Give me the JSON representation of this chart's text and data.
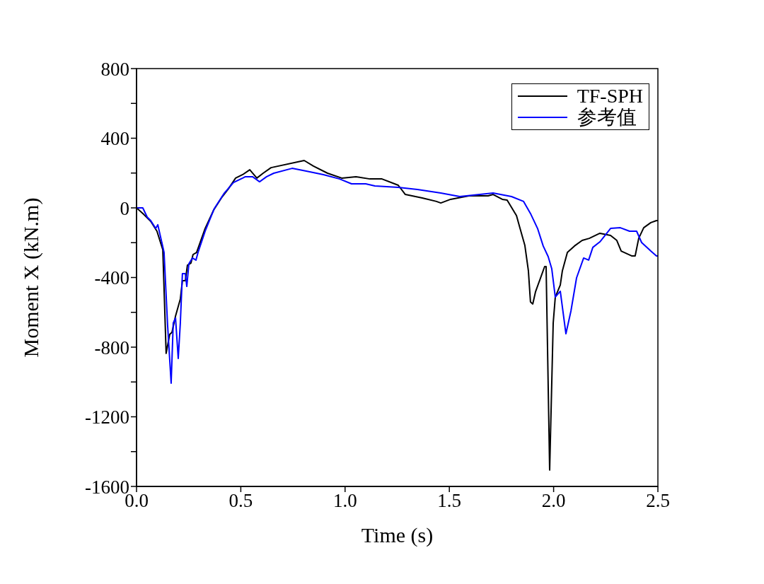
{
  "chart_data": {
    "type": "line",
    "xlabel": "Time (s)",
    "ylabel": "Moment X (kN.m)",
    "xlim": [
      0,
      2.5
    ],
    "xticks": [
      {
        "value": 0,
        "label": "0.0"
      },
      {
        "value": 0.5,
        "label": "0.5"
      },
      {
        "value": 1,
        "label": "1.0"
      },
      {
        "value": 1.5,
        "label": "1.5"
      },
      {
        "value": 2,
        "label": "2.0"
      },
      {
        "value": 2.5,
        "label": "2.5"
      }
    ],
    "ylim": [
      -1600,
      800
    ],
    "yticks": [
      -1600,
      {
        "value": -1400,
        "label": null
      },
      -1200,
      {
        "value": -1000,
        "label": null
      },
      -800,
      {
        "value": -600,
        "label": null
      },
      -400,
      {
        "value": -200,
        "label": null
      },
      0,
      {
        "value": 200,
        "label": null
      },
      400,
      {
        "value": 600,
        "label": null
      },
      800
    ],
    "legend": "top right",
    "marker": "none",
    "line_style": "solid",
    "series": [
      {
        "name": "TF-SPH",
        "color": "#000000",
        "x": [
          0,
          0.034,
          0.068,
          0.098,
          0.115,
          0.126,
          0.142,
          0.159,
          0.17,
          0.187,
          0.21,
          0.22,
          0.234,
          0.244,
          0.261,
          0.271,
          0.288,
          0.329,
          0.37,
          0.407,
          0.441,
          0.475,
          0.509,
          0.543,
          0.577,
          0.607,
          0.645,
          0.804,
          0.848,
          0.916,
          0.984,
          1.052,
          1.119,
          1.177,
          1.255,
          1.289,
          1.37,
          1.438,
          1.459,
          1.506,
          1.594,
          1.686,
          1.71,
          1.754,
          1.777,
          1.822,
          1.839,
          1.862,
          1.879,
          1.889,
          1.9,
          1.913,
          1.957,
          1.964,
          1.981,
          1.998,
          2.008,
          2.032,
          2.042,
          2.066,
          2.1,
          2.137,
          2.171,
          2.222,
          2.273,
          2.303,
          2.324,
          2.374,
          2.391,
          2.408,
          2.432,
          2.466,
          2.493,
          2.5
        ],
        "values": [
          0,
          -37,
          -77,
          -134,
          -199,
          -240,
          -836,
          -727,
          -715,
          -621,
          -524,
          -418,
          -418,
          -329,
          -317,
          -268,
          -256,
          -118,
          -12,
          57,
          110,
          171,
          191,
          219,
          171,
          199,
          231,
          272,
          240,
          199,
          171,
          179,
          166,
          166,
          130,
          77,
          57,
          37,
          28,
          49,
          69,
          69,
          77,
          49,
          45,
          -45,
          -118,
          -215,
          -361,
          -540,
          -552,
          -483,
          -337,
          -337,
          -1506,
          -662,
          -512,
          -443,
          -361,
          -256,
          -219,
          -187,
          -175,
          -146,
          -158,
          -187,
          -248,
          -276,
          -276,
          -175,
          -114,
          -85,
          -73,
          -73
        ]
      },
      {
        "name": "参考值",
        "color": "#0000ff",
        "x": [
          0,
          0.03,
          0.051,
          0.068,
          0.092,
          0.102,
          0.119,
          0.132,
          0.149,
          0.166,
          0.176,
          0.187,
          0.2,
          0.21,
          0.22,
          0.234,
          0.241,
          0.251,
          0.268,
          0.285,
          0.295,
          0.329,
          0.373,
          0.421,
          0.465,
          0.509,
          0.522,
          0.556,
          0.59,
          0.624,
          0.658,
          0.746,
          0.814,
          0.896,
          0.974,
          1.031,
          1.099,
          1.143,
          1.255,
          1.347,
          1.459,
          1.55,
          1.71,
          1.798,
          1.856,
          1.889,
          1.923,
          1.95,
          1.974,
          1.991,
          2.008,
          2.032,
          2.059,
          2.083,
          2.11,
          2.144,
          2.168,
          2.188,
          2.222,
          2.273,
          2.32,
          2.364,
          2.398,
          2.422,
          2.466,
          2.493,
          2.5
        ],
        "values": [
          0,
          0,
          -53,
          -73,
          -118,
          -97,
          -187,
          -256,
          -674,
          -1007,
          -662,
          -633,
          -865,
          -662,
          -378,
          -378,
          -451,
          -321,
          -288,
          -300,
          -256,
          -134,
          -4,
          85,
          146,
          171,
          179,
          179,
          150,
          179,
          199,
          227,
          211,
          191,
          166,
          138,
          138,
          126,
          118,
          106,
          85,
          65,
          85,
          65,
          37,
          -32,
          -118,
          -219,
          -280,
          -349,
          -512,
          -479,
          -723,
          -593,
          -402,
          -288,
          -300,
          -227,
          -195,
          -118,
          -114,
          -134,
          -134,
          -199,
          -248,
          -276,
          -276
        ]
      }
    ]
  }
}
